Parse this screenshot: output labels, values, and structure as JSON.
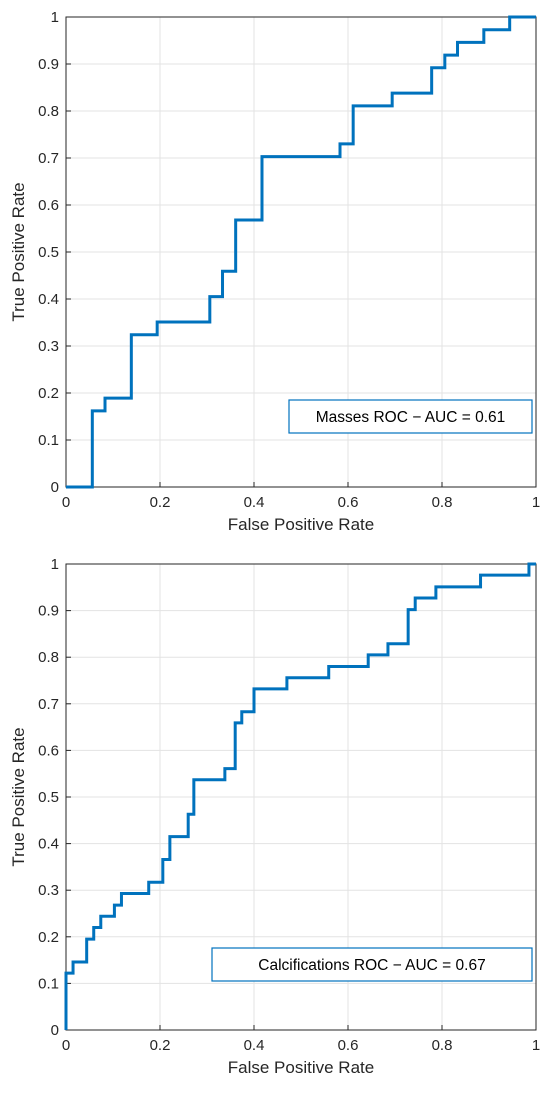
{
  "chart_data": [
    {
      "type": "line",
      "title": "",
      "xlabel": "False Positive Rate",
      "ylabel": "True Positive Rate",
      "xlim": [
        0,
        1
      ],
      "ylim": [
        0,
        1
      ],
      "x_ticks": [
        "0",
        "0.2",
        "0.4",
        "0.6",
        "0.8",
        "1"
      ],
      "y_ticks": [
        "0",
        "0.1",
        "0.2",
        "0.3",
        "0.4",
        "0.5",
        "0.6",
        "0.7",
        "0.8",
        "0.9",
        "1"
      ],
      "grid": true,
      "legend_position": "bottom-right",
      "series": [
        {
          "name": "Masses ROC − AUC = 0.61",
          "color": "#0072BD",
          "points": [
            [
              0,
              0
            ],
            [
              0.056,
              0
            ],
            [
              0.056,
              0.162
            ],
            [
              0.083,
              0.162
            ],
            [
              0.083,
              0.189
            ],
            [
              0.139,
              0.189
            ],
            [
              0.139,
              0.324
            ],
            [
              0.194,
              0.324
            ],
            [
              0.194,
              0.351
            ],
            [
              0.306,
              0.351
            ],
            [
              0.306,
              0.405
            ],
            [
              0.333,
              0.405
            ],
            [
              0.333,
              0.459
            ],
            [
              0.361,
              0.459
            ],
            [
              0.361,
              0.568
            ],
            [
              0.417,
              0.568
            ],
            [
              0.417,
              0.703
            ],
            [
              0.583,
              0.703
            ],
            [
              0.583,
              0.73
            ],
            [
              0.611,
              0.73
            ],
            [
              0.611,
              0.811
            ],
            [
              0.694,
              0.811
            ],
            [
              0.694,
              0.838
            ],
            [
              0.778,
              0.838
            ],
            [
              0.778,
              0.892
            ],
            [
              0.806,
              0.892
            ],
            [
              0.806,
              0.919
            ],
            [
              0.833,
              0.919
            ],
            [
              0.833,
              0.946
            ],
            [
              0.889,
              0.946
            ],
            [
              0.889,
              0.973
            ],
            [
              0.944,
              0.973
            ],
            [
              0.944,
              1.0
            ],
            [
              1.0,
              1.0
            ]
          ]
        }
      ]
    },
    {
      "type": "line",
      "title": "",
      "xlabel": "False Positive Rate",
      "ylabel": "True Positive Rate",
      "xlim": [
        0,
        1
      ],
      "ylim": [
        0,
        1
      ],
      "x_ticks": [
        "0",
        "0.2",
        "0.4",
        "0.6",
        "0.8",
        "1"
      ],
      "y_ticks": [
        "0",
        "0.1",
        "0.2",
        "0.3",
        "0.4",
        "0.5",
        "0.6",
        "0.7",
        "0.8",
        "0.9",
        "1"
      ],
      "grid": true,
      "legend_position": "bottom-right",
      "series": [
        {
          "name": "Calcifications ROC − AUC = 0.67",
          "color": "#0072BD",
          "points": [
            [
              0,
              0
            ],
            [
              0,
              0.122
            ],
            [
              0.015,
              0.122
            ],
            [
              0.015,
              0.146
            ],
            [
              0.044,
              0.146
            ],
            [
              0.044,
              0.195
            ],
            [
              0.059,
              0.195
            ],
            [
              0.059,
              0.22
            ],
            [
              0.074,
              0.22
            ],
            [
              0.074,
              0.244
            ],
            [
              0.103,
              0.244
            ],
            [
              0.103,
              0.268
            ],
            [
              0.118,
              0.268
            ],
            [
              0.118,
              0.293
            ],
            [
              0.176,
              0.293
            ],
            [
              0.176,
              0.317
            ],
            [
              0.206,
              0.317
            ],
            [
              0.206,
              0.366
            ],
            [
              0.221,
              0.366
            ],
            [
              0.221,
              0.415
            ],
            [
              0.26,
              0.415
            ],
            [
              0.26,
              0.463
            ],
            [
              0.272,
              0.463
            ],
            [
              0.272,
              0.537
            ],
            [
              0.338,
              0.537
            ],
            [
              0.338,
              0.561
            ],
            [
              0.36,
              0.561
            ],
            [
              0.36,
              0.659
            ],
            [
              0.374,
              0.659
            ],
            [
              0.374,
              0.683
            ],
            [
              0.4,
              0.683
            ],
            [
              0.4,
              0.732
            ],
            [
              0.47,
              0.732
            ],
            [
              0.47,
              0.756
            ],
            [
              0.559,
              0.756
            ],
            [
              0.559,
              0.78
            ],
            [
              0.643,
              0.78
            ],
            [
              0.643,
              0.805
            ],
            [
              0.685,
              0.805
            ],
            [
              0.685,
              0.829
            ],
            [
              0.728,
              0.829
            ],
            [
              0.728,
              0.902
            ],
            [
              0.743,
              0.902
            ],
            [
              0.743,
              0.927
            ],
            [
              0.787,
              0.927
            ],
            [
              0.787,
              0.951
            ],
            [
              0.882,
              0.951
            ],
            [
              0.882,
              0.976
            ],
            [
              0.985,
              0.976
            ],
            [
              0.985,
              1.0
            ],
            [
              1.0,
              1.0
            ]
          ]
        }
      ]
    }
  ]
}
